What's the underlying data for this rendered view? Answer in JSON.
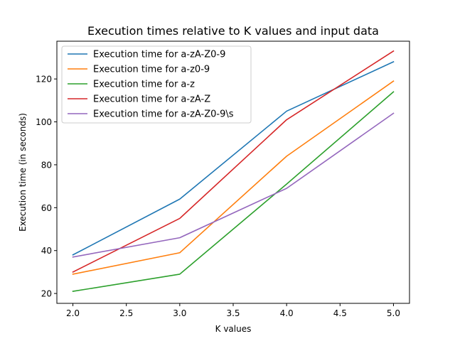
{
  "chart_data": {
    "type": "line",
    "title": "Execution times relative to K values and input data",
    "xlabel": "K values",
    "ylabel": "Execution time (in seconds)",
    "x": [
      2.0,
      3.0,
      4.0,
      5.0
    ],
    "xlim": [
      1.85,
      5.15
    ],
    "ylim": [
      15.4,
      137.6
    ],
    "x_ticks": [
      2.0,
      2.5,
      3.0,
      3.5,
      4.0,
      4.5,
      5.0
    ],
    "x_tick_labels": [
      "2.0",
      "2.5",
      "3.0",
      "3.5",
      "4.0",
      "4.5",
      "5.0"
    ],
    "y_ticks": [
      20,
      40,
      60,
      80,
      100,
      120
    ],
    "y_tick_labels": [
      "20",
      "40",
      "60",
      "80",
      "100",
      "120"
    ],
    "grid": false,
    "legend_position": "top-left",
    "series": [
      {
        "name": "Execution time for a-zA-Z0-9",
        "color": "#1f77b4",
        "values": [
          38,
          64,
          105,
          128
        ]
      },
      {
        "name": "Execution time for a-z0-9",
        "color": "#ff7f0e",
        "values": [
          29,
          39,
          84,
          119
        ]
      },
      {
        "name": "Execution time for a-z",
        "color": "#2ca02c",
        "values": [
          21,
          29,
          71,
          114
        ]
      },
      {
        "name": "Execution time for a-zA-Z",
        "color": "#d62728",
        "values": [
          30,
          55,
          101,
          133
        ]
      },
      {
        "name": "Execution time for a-zA-Z0-9\\s",
        "color": "#9467bd",
        "values": [
          37,
          46,
          69,
          104
        ]
      }
    ]
  }
}
